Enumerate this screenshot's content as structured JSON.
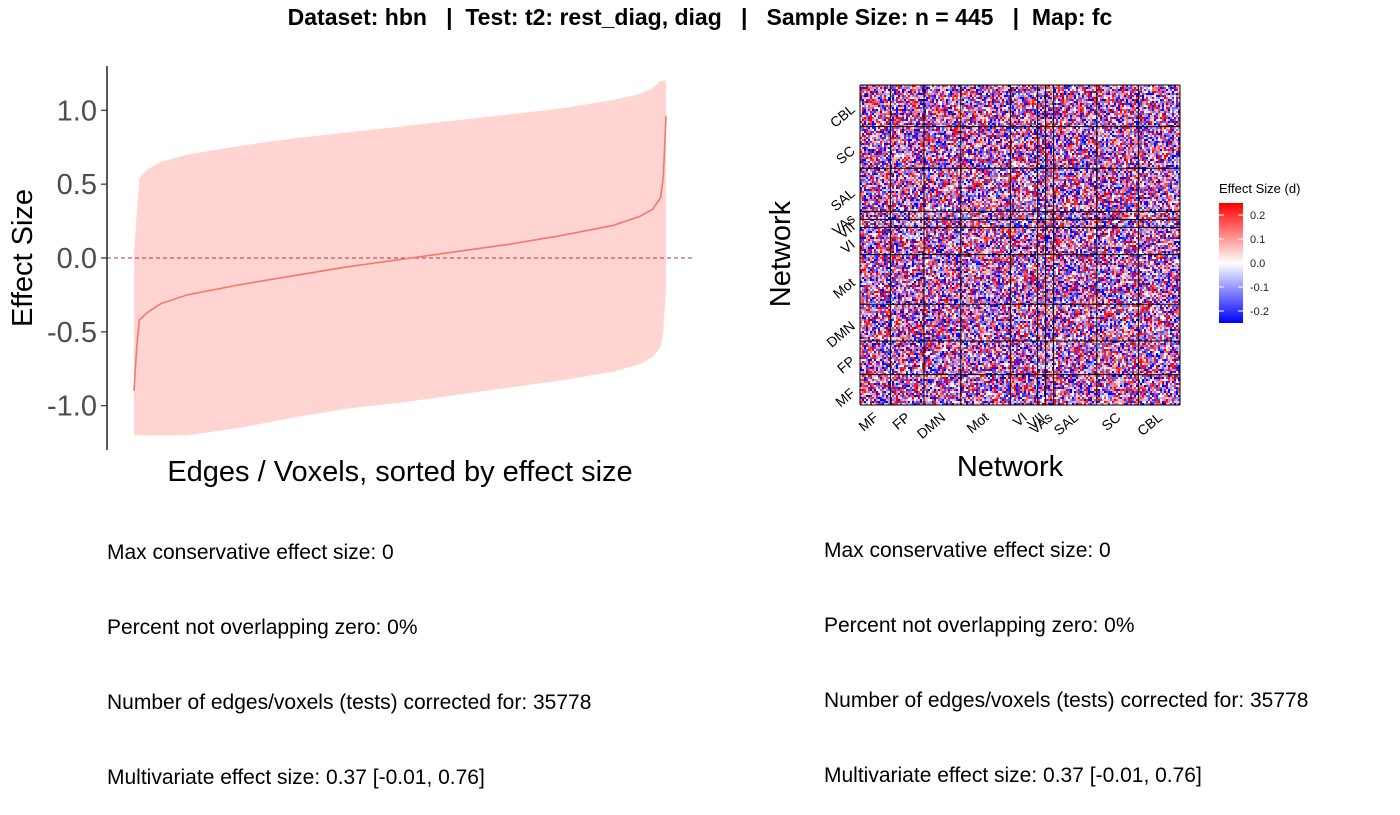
{
  "title": "Dataset: hbn   |  Test: t2: rest_diag, diag   |   Sample Size: n = 445   |  Map: fc",
  "chart_data": [
    {
      "type": "area",
      "description_of_marks": "ribbon with center line",
      "ylabel": "Effect Size",
      "xlabel": "Edges / Voxels, sorted by effect size",
      "ylim": [
        -1.3,
        1.3
      ],
      "yticks": [
        "1.0",
        "0.5",
        "0.0",
        "-0.5",
        "-1.0"
      ],
      "ytick_values": [
        1.0,
        0.5,
        0.0,
        -0.5,
        -1.0
      ],
      "reference_line": 0,
      "x": [
        0,
        0.005,
        0.01,
        0.025,
        0.05,
        0.1,
        0.2,
        0.3,
        0.4,
        0.5,
        0.6,
        0.7,
        0.8,
        0.9,
        0.95,
        0.975,
        0.99,
        0.995,
        1.0
      ],
      "series": [
        {
          "role": "estimate",
          "values": [
            -0.9,
            -0.6,
            -0.42,
            -0.37,
            -0.31,
            -0.25,
            -0.18,
            -0.12,
            -0.06,
            -0.01,
            0.04,
            0.09,
            0.15,
            0.22,
            0.28,
            0.33,
            0.41,
            0.55,
            0.96
          ]
        },
        {
          "role": "upper",
          "values": [
            0.02,
            0.3,
            0.54,
            0.6,
            0.65,
            0.7,
            0.76,
            0.81,
            0.85,
            0.89,
            0.93,
            0.97,
            1.01,
            1.07,
            1.11,
            1.15,
            1.2,
            1.2,
            1.2
          ]
        },
        {
          "role": "lower",
          "values": [
            -1.2,
            -1.2,
            -1.2,
            -1.2,
            -1.2,
            -1.2,
            -1.15,
            -1.08,
            -1.02,
            -0.98,
            -0.93,
            -0.88,
            -0.83,
            -0.77,
            -0.72,
            -0.67,
            -0.6,
            -0.5,
            -0.2
          ]
        }
      ],
      "colors": {
        "line": "#f8766d",
        "ribbon": "#ffd4d1",
        "zero_line": "#b33a3a"
      }
    },
    {
      "type": "heatmap",
      "xlabel": "Network",
      "ylabel": "Network",
      "x_categories": [
        "MF",
        "FP",
        "DMN",
        "Mot",
        "VI",
        "VII",
        "VAs",
        "SAL",
        "SC",
        "CBL"
      ],
      "y_categories": [
        "MF",
        "FP",
        "DMN",
        "Mot",
        "VI",
        "VII",
        "VAs",
        "SAL",
        "SC",
        "CBL"
      ],
      "block_boundaries": [
        0,
        0.095,
        0.2,
        0.315,
        0.47,
        0.555,
        0.58,
        0.605,
        0.74,
        0.87,
        1.0
      ],
      "legend": {
        "title": "Effect Size (d)",
        "ticks": [
          "0.2",
          "0.1",
          "0.0",
          "-0.1",
          "-0.2"
        ],
        "tick_values": [
          0.2,
          0.1,
          0.0,
          -0.1,
          -0.2
        ],
        "range": [
          -0.25,
          0.25
        ],
        "colors": {
          "low": "#0000ff",
          "mid": "#ffffff",
          "high": "#ff0000"
        }
      }
    }
  ],
  "stats_left": {
    "line1": "Max conservative effect size: 0",
    "line2": "Percent not overlapping zero: 0%",
    "line3": "Number of edges/voxels (tests) corrected for: 35778",
    "line4": "Multivariate effect size: 0.37 [-0.01, 0.76]"
  },
  "stats_right": {
    "line1": "Max conservative effect size: 0",
    "line2": "Percent not overlapping zero: 0%",
    "line3": "Number of edges/voxels (tests) corrected for: 35778",
    "line4": "Multivariate effect size: 0.37 [-0.01, 0.76]"
  }
}
